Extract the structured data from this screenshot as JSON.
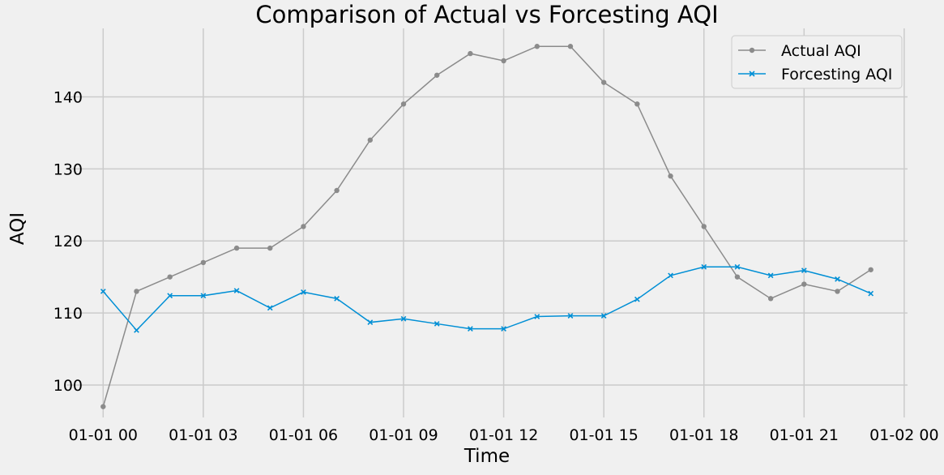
{
  "chart_data": {
    "type": "line",
    "title": "Comparison of Actual vs Forcesting AQI",
    "xlabel": "Time",
    "ylabel": "AQI",
    "x": [
      "2025-01-01 00:00",
      "2025-01-01 01:00",
      "2025-01-01 02:00",
      "2025-01-01 03:00",
      "2025-01-01 04:00",
      "2025-01-01 05:00",
      "2025-01-01 06:00",
      "2025-01-01 07:00",
      "2025-01-01 08:00",
      "2025-01-01 09:00",
      "2025-01-01 10:00",
      "2025-01-01 11:00",
      "2025-01-01 12:00",
      "2025-01-01 13:00",
      "2025-01-01 14:00",
      "2025-01-01 15:00",
      "2025-01-01 16:00",
      "2025-01-01 17:00",
      "2025-01-01 18:00",
      "2025-01-01 19:00",
      "2025-01-01 20:00",
      "2025-01-01 21:00",
      "2025-01-01 22:00",
      "2025-01-01 23:00"
    ],
    "x_hours": [
      0,
      1,
      2,
      3,
      4,
      5,
      6,
      7,
      8,
      9,
      10,
      11,
      12,
      13,
      14,
      15,
      16,
      17,
      18,
      19,
      20,
      21,
      22,
      23
    ],
    "x_ticks": [
      {
        "hour": 0,
        "label": "01-01 00"
      },
      {
        "hour": 3,
        "label": "01-01 03"
      },
      {
        "hour": 6,
        "label": "01-01 06"
      },
      {
        "hour": 9,
        "label": "01-01 09"
      },
      {
        "hour": 12,
        "label": "01-01 12"
      },
      {
        "hour": 15,
        "label": "01-01 15"
      },
      {
        "hour": 18,
        "label": "01-01 18"
      },
      {
        "hour": 21,
        "label": "01-01 21"
      },
      {
        "hour": 24,
        "label": "01-02 00"
      }
    ],
    "y_ticks": [
      100,
      110,
      120,
      130,
      140
    ],
    "xlim": [
      -1.1,
      24.1
    ],
    "ylim": [
      95.5,
      149.5
    ],
    "grid": true,
    "legend_position": "top-right",
    "series": [
      {
        "name": "Actual AQI",
        "color": "#8b8b8b",
        "marker": "circle",
        "values": [
          97,
          113,
          115,
          117,
          119,
          119,
          122,
          127,
          134,
          139,
          143,
          146,
          145,
          147,
          147,
          142,
          139,
          129,
          122,
          115,
          112,
          114,
          113,
          116
        ]
      },
      {
        "name": "Forcesting AQI",
        "color": "#008fd5",
        "marker": "x",
        "values": [
          113.0,
          107.6,
          112.4,
          112.4,
          113.1,
          110.7,
          112.9,
          112.0,
          108.7,
          109.2,
          108.5,
          107.8,
          107.8,
          109.5,
          109.6,
          109.6,
          111.9,
          115.2,
          116.4,
          116.4,
          115.2,
          115.9,
          114.7,
          112.7
        ]
      }
    ]
  }
}
